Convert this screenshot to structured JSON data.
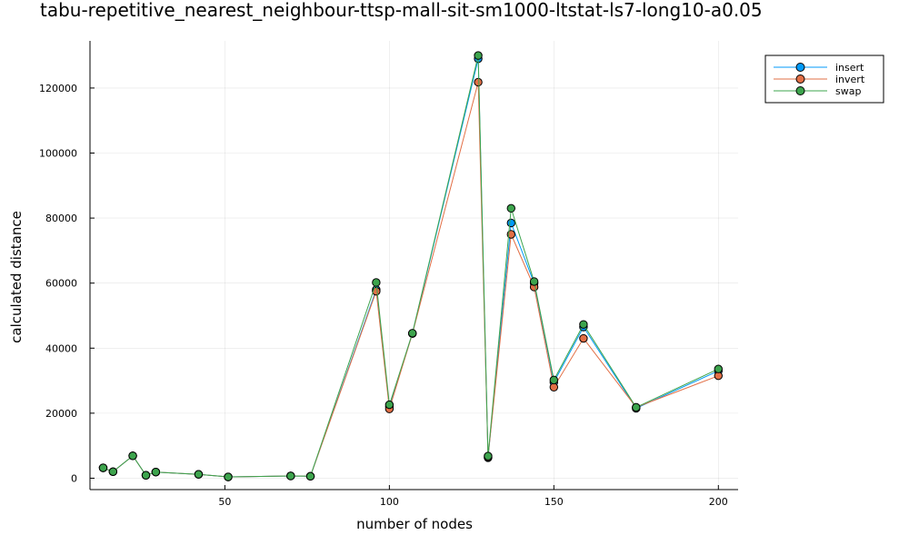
{
  "chart_data": {
    "type": "line",
    "title": "tabu-repetitive_nearest_neighbour-ttsp-mall-sit-sm1000-ltstat-ls7-long10-a0.05",
    "xlabel": "number of nodes",
    "ylabel": "calculated distance",
    "xlim": [
      9,
      206
    ],
    "ylim": [
      -3500,
      134500
    ],
    "xticks": [
      50,
      100,
      150,
      200
    ],
    "yticks": [
      0,
      20000,
      40000,
      60000,
      80000,
      100000,
      120000
    ],
    "grid": true,
    "legend_position": "top-right",
    "x": [
      13,
      16,
      22,
      26,
      29,
      42,
      51,
      70,
      76,
      96,
      100,
      107,
      127,
      130,
      137,
      144,
      150,
      159,
      175,
      200
    ],
    "series": [
      {
        "name": "insert",
        "color": "#009AFA",
        "values": [
          3200,
          2000,
          6900,
          900,
          1900,
          1200,
          400,
          700,
          600,
          58000,
          22000,
          44500,
          129000,
          6300,
          78500,
          60000,
          29500,
          46500,
          21500,
          33000
        ]
      },
      {
        "name": "invert",
        "color": "#E26F46",
        "values": [
          3200,
          2000,
          6900,
          900,
          1900,
          1200,
          400,
          700,
          600,
          57500,
          21300,
          44500,
          121800,
          6500,
          75000,
          58800,
          28000,
          43000,
          21800,
          31500
        ]
      },
      {
        "name": "swap",
        "color": "#3DA44D",
        "values": [
          3200,
          2000,
          6900,
          900,
          1900,
          1200,
          400,
          700,
          600,
          60200,
          22600,
          44600,
          130000,
          6800,
          83000,
          60500,
          30200,
          47300,
          21800,
          33600
        ]
      }
    ]
  }
}
